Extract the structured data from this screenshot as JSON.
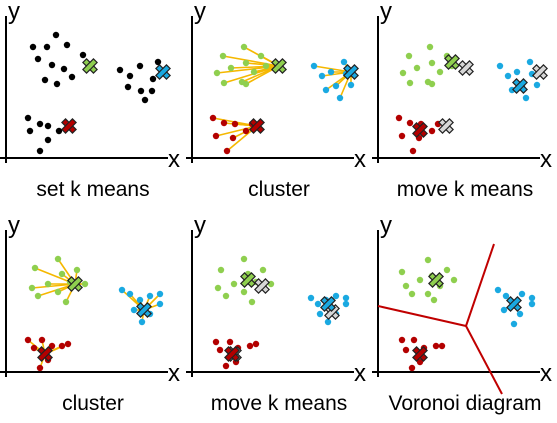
{
  "axis_labels": {
    "x": "x",
    "y": "y"
  },
  "colors": {
    "black": "#000000",
    "green": "#8fcf4f",
    "blue": "#1aa9e1",
    "red": "#b30000",
    "gray": "#d7d7d7",
    "line": "#f5b800",
    "voronoi": "#c00000"
  },
  "panels": [
    {
      "caption": "set k means"
    },
    {
      "caption": "cluster"
    },
    {
      "caption": "move k means"
    },
    {
      "caption": "cluster"
    },
    {
      "caption": "move k means"
    },
    {
      "caption": "Voronoi diagram"
    }
  ]
}
